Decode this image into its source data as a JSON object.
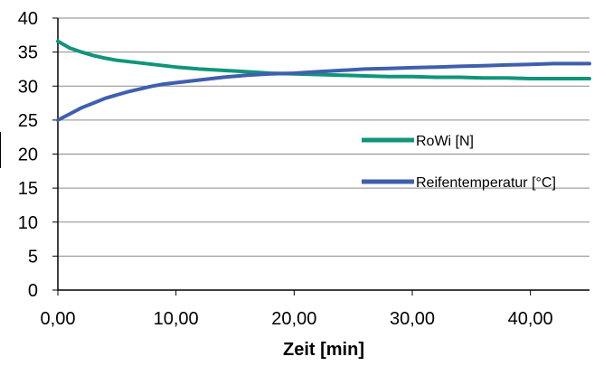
{
  "chart_data": {
    "type": "line",
    "xlabel": "Zeit [min]",
    "ylabel": "",
    "xlim": [
      0,
      45
    ],
    "ylim": [
      0,
      40
    ],
    "x_ticks": [
      0,
      10,
      20,
      30,
      40
    ],
    "x_tick_labels": [
      "0,00",
      "10,00",
      "20,00",
      "30,00",
      "40,00"
    ],
    "y_ticks": [
      0,
      5,
      10,
      15,
      20,
      25,
      30,
      35,
      40
    ],
    "y_tick_labels": [
      "0",
      "5",
      "10",
      "15",
      "20",
      "25",
      "30",
      "35",
      "40"
    ],
    "grid": {
      "horizontal": true,
      "vertical": false
    },
    "legend_position": "right",
    "series": [
      {
        "name": "RoWi [N]",
        "color": "#10957a",
        "x": [
          0,
          1,
          2,
          3,
          4,
          5,
          6,
          7,
          8,
          9,
          10,
          12,
          14,
          16,
          18,
          20,
          22,
          24,
          26,
          28,
          30,
          32,
          34,
          36,
          38,
          40,
          42,
          45
        ],
        "y": [
          36.6,
          35.6,
          35.0,
          34.5,
          34.1,
          33.8,
          33.6,
          33.4,
          33.2,
          33.0,
          32.8,
          32.5,
          32.3,
          32.1,
          31.9,
          31.8,
          31.7,
          31.6,
          31.5,
          31.4,
          31.4,
          31.3,
          31.3,
          31.2,
          31.2,
          31.1,
          31.1,
          31.1
        ]
      },
      {
        "name": "Reifentemperatur [°C]",
        "color": "#3f5fae",
        "x": [
          0,
          1,
          2,
          3,
          4,
          5,
          6,
          7,
          8,
          9,
          10,
          12,
          14,
          16,
          18,
          20,
          22,
          24,
          26,
          28,
          30,
          32,
          34,
          36,
          38,
          40,
          42,
          45
        ],
        "y": [
          25.0,
          25.9,
          26.8,
          27.5,
          28.2,
          28.7,
          29.2,
          29.6,
          30.0,
          30.3,
          30.5,
          30.9,
          31.3,
          31.6,
          31.8,
          31.9,
          32.1,
          32.3,
          32.5,
          32.6,
          32.7,
          32.8,
          32.9,
          33.0,
          33.1,
          33.2,
          33.3,
          33.3
        ]
      }
    ]
  }
}
